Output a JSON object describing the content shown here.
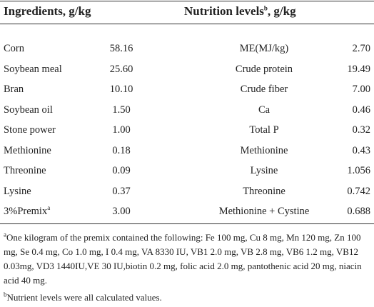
{
  "header": {
    "ingredients": "Ingredients, g/kg",
    "nutrition": "Nutrition levels",
    "nutrition_sup": "b",
    "nutrition_unit": ", g/kg"
  },
  "table": {
    "rows": [
      {
        "ingredient": "Corn",
        "amount": "58.16",
        "nutrient": "ME(MJ/kg)",
        "level": "2.70"
      },
      {
        "ingredient": "Soybean meal",
        "amount": "25.60",
        "nutrient": "Crude protein",
        "level": "19.49"
      },
      {
        "ingredient": "Bran",
        "amount": "10.10",
        "nutrient": "Crude fiber",
        "level": "7.00"
      },
      {
        "ingredient": "Soybean oil",
        "amount": "1.50",
        "nutrient": "Ca",
        "level": "0.46"
      },
      {
        "ingredient": "Stone power",
        "amount": "1.00",
        "nutrient": "Total P",
        "level": "0.32"
      },
      {
        "ingredient": "Methionine",
        "amount": "0.18",
        "nutrient": "Methionine",
        "level": "0.43"
      },
      {
        "ingredient": "Threonine",
        "amount": "0.09",
        "nutrient": "Lysine",
        "level": "1.056"
      },
      {
        "ingredient": "Lysine",
        "amount": "0.37",
        "nutrient": "Threonine",
        "level": "0.742"
      },
      {
        "ingredient": "3%Premix",
        "ingredient_sup": "a",
        "amount": "3.00",
        "nutrient": "Methionine + Cystine",
        "level": "0.688"
      }
    ]
  },
  "footnotes": [
    {
      "marker": "a",
      "text": "One kilogram of the premix contained the following: Fe 100 mg, Cu 8 mg, Mn 120 mg, Zn 100 mg, Se 0.4 mg, Co 1.0 mg, I 0.4 mg, VA 8330 IU, VB1 2.0 mg, VB 2.8 mg, VB6 1.2 mg, VB12 0.03mg, VD3 1440IU,VE 30 IU,biotin 0.2 mg, folic acid 2.0 mg, pantothenic acid 20 mg, niacin acid 40 mg."
    },
    {
      "marker": "b",
      "text": "Nutrient levels were all calculated values."
    }
  ]
}
